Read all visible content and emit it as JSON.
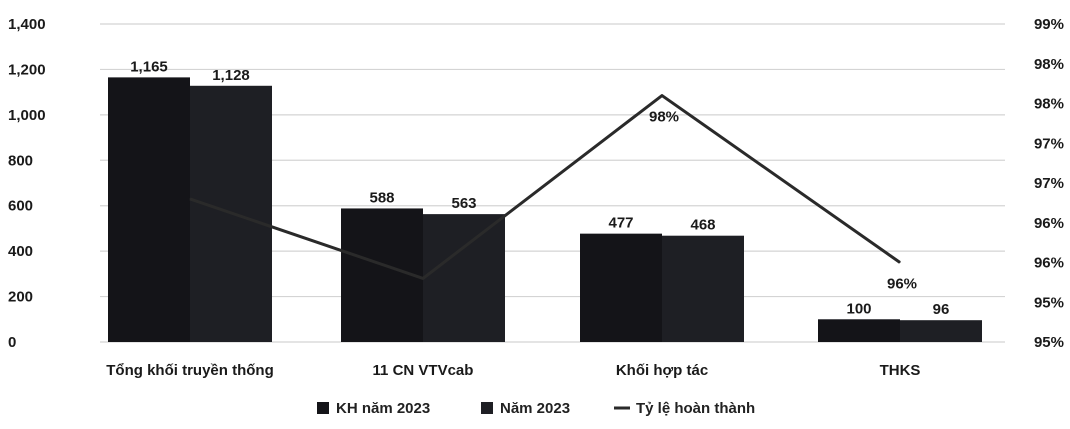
{
  "chart_data": {
    "type": "bar",
    "categories": [
      "Tổng khối truyền thống",
      "11 CN VTVcab",
      "Khối hợp tác",
      "THKS"
    ],
    "series": [
      {
        "name": "KH năm 2023",
        "values": [
          1165,
          588,
          477,
          100
        ],
        "labels": [
          "1,165",
          "588",
          "477",
          "100"
        ],
        "color": "#141418"
      },
      {
        "name": "Năm 2023",
        "values": [
          1128,
          563,
          468,
          96
        ],
        "labels": [
          "1,128",
          "563",
          "468",
          "96"
        ],
        "color": "#1e1f24"
      }
    ],
    "line_series": {
      "name": "Tỷ lệ hoàn thành",
      "values": [
        96.8,
        95.8,
        98.1,
        96.0
      ],
      "labels": [
        "",
        "",
        "98%",
        "96%"
      ],
      "color": "#2a2a2a"
    },
    "y_left": {
      "min": 0,
      "max": 1400,
      "ticks": [
        0,
        200,
        400,
        600,
        800,
        1000,
        1200,
        1400
      ],
      "tick_labels": [
        "0",
        "200",
        "400",
        "600",
        "800",
        "1,000",
        "1,200",
        "1,400"
      ]
    },
    "y_right": {
      "min": 95,
      "max": 99,
      "tick_labels": [
        "95%",
        "95%",
        "96%",
        "96%",
        "97%",
        "97%",
        "98%",
        "98%",
        "99%"
      ]
    },
    "grid": true,
    "legend_position": "bottom"
  }
}
